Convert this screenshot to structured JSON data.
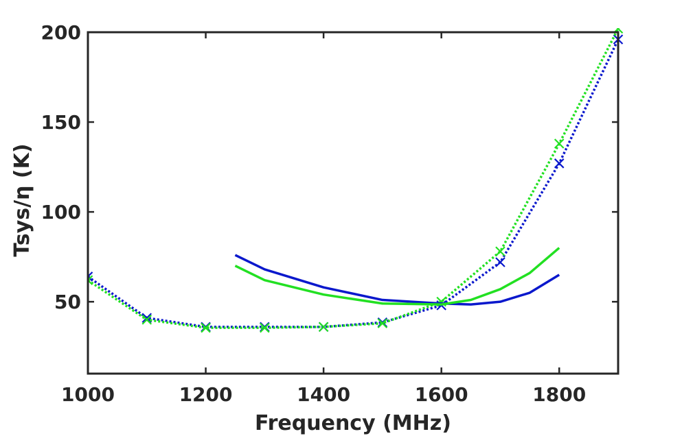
{
  "chart_data": {
    "type": "line",
    "title": "",
    "xlabel": "Frequency (MHz)",
    "ylabel": "Tsys/η (K)",
    "xlim": [
      1000,
      1900
    ],
    "ylim": [
      10,
      200
    ],
    "xticks": [
      1000,
      1200,
      1400,
      1600,
      1800
    ],
    "yticks": [
      50,
      100,
      150,
      200
    ],
    "grid": false,
    "legend": "none",
    "series": [
      {
        "name": "blue-solid",
        "color": "#0a18cc",
        "style": "solid",
        "marker": "none",
        "x": [
          1250,
          1300,
          1400,
          1500,
          1600,
          1650,
          1700,
          1750,
          1800
        ],
        "y": [
          76,
          68,
          58,
          51,
          49,
          48.5,
          50,
          55,
          65
        ]
      },
      {
        "name": "green-solid",
        "color": "#22e022",
        "style": "solid",
        "marker": "none",
        "x": [
          1250,
          1300,
          1400,
          1500,
          1600,
          1650,
          1700,
          1750,
          1800
        ],
        "y": [
          70,
          62,
          54,
          49,
          48.5,
          51,
          57,
          66,
          80
        ]
      },
      {
        "name": "blue-dotted",
        "color": "#0a18cc",
        "style": "dotted",
        "marker": "x",
        "x": [
          1000,
          1100,
          1200,
          1300,
          1400,
          1500,
          1600,
          1700,
          1800,
          1900
        ],
        "y": [
          64,
          41,
          36,
          36,
          36,
          38.5,
          48,
          72,
          127,
          196
        ]
      },
      {
        "name": "green-dotted",
        "color": "#22e022",
        "style": "dotted",
        "marker": "x",
        "x": [
          1000,
          1100,
          1200,
          1300,
          1400,
          1500,
          1600,
          1700,
          1800,
          1900
        ],
        "y": [
          62,
          40,
          35.5,
          35.5,
          36,
          38,
          50,
          78,
          138,
          202
        ]
      }
    ]
  }
}
